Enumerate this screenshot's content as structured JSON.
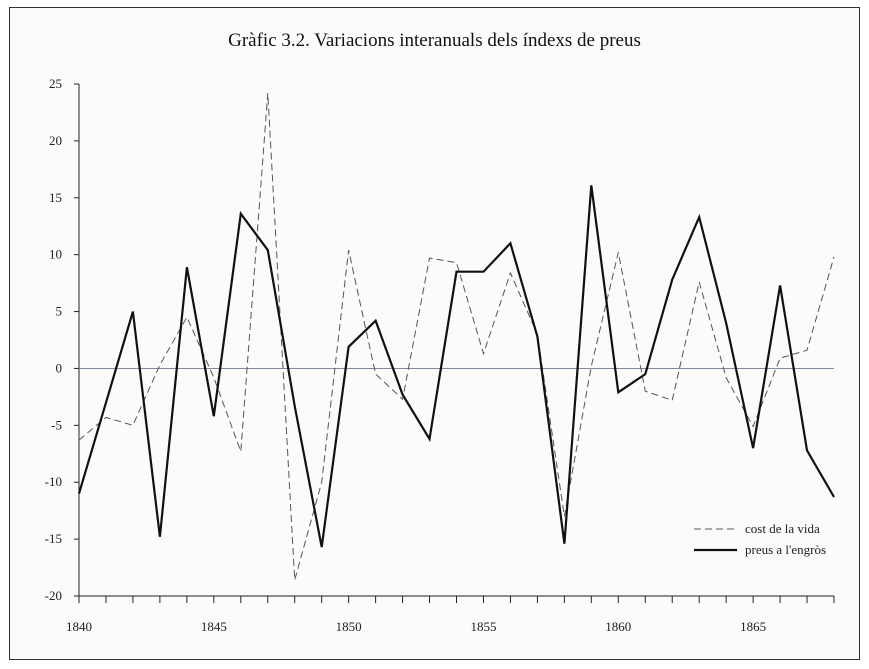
{
  "chart_data": {
    "type": "line",
    "title": "Gràfic 3.2. Variacions interanuals dels índexs de preus",
    "xlabel": "",
    "ylabel": "",
    "x": [
      1840,
      1841,
      1842,
      1843,
      1844,
      1845,
      1846,
      1847,
      1848,
      1849,
      1850,
      1851,
      1852,
      1853,
      1854,
      1855,
      1856,
      1857,
      1858,
      1859,
      1860,
      1861,
      1862,
      1863,
      1864,
      1865,
      1866,
      1867,
      1868
    ],
    "xlim": [
      1840,
      1868
    ],
    "ylim": [
      -20,
      25
    ],
    "x_ticks": [
      "1840",
      "1845",
      "1850",
      "1855",
      "1860",
      "1865"
    ],
    "y_ticks": [
      "25",
      "20",
      "15",
      "10",
      "5",
      "0",
      "-5",
      "-10",
      "-15",
      "-20"
    ],
    "zero_line": true,
    "grid": false,
    "legend_position": "bottom-right",
    "series": [
      {
        "name": "cost de la vida",
        "style": "dashed",
        "color": "#555555",
        "values": [
          -6.3,
          -4.3,
          -5.0,
          0.3,
          4.5,
          -0.8,
          -7.3,
          24.2,
          -18.6,
          -10.0,
          10.4,
          -0.5,
          -2.7,
          9.7,
          9.3,
          1.3,
          8.4,
          3.0,
          -13.0,
          0.2,
          10.2,
          -2.0,
          -2.8,
          7.6,
          -0.8,
          -5.1,
          0.9,
          1.6,
          9.8
        ]
      },
      {
        "name": "preus a l'engròs",
        "style": "solid",
        "color": "#111111",
        "values": [
          -11.0,
          -3.0,
          5.0,
          -14.8,
          8.9,
          -4.2,
          13.6,
          10.4,
          -3.3,
          -15.7,
          1.9,
          4.2,
          -2.3,
          -6.2,
          8.5,
          8.5,
          11.0,
          2.8,
          -15.4,
          16.1,
          -2.1,
          -0.5,
          7.8,
          13.3,
          4.0,
          -7.0,
          7.3,
          -7.2,
          -11.3
        ]
      }
    ]
  }
}
